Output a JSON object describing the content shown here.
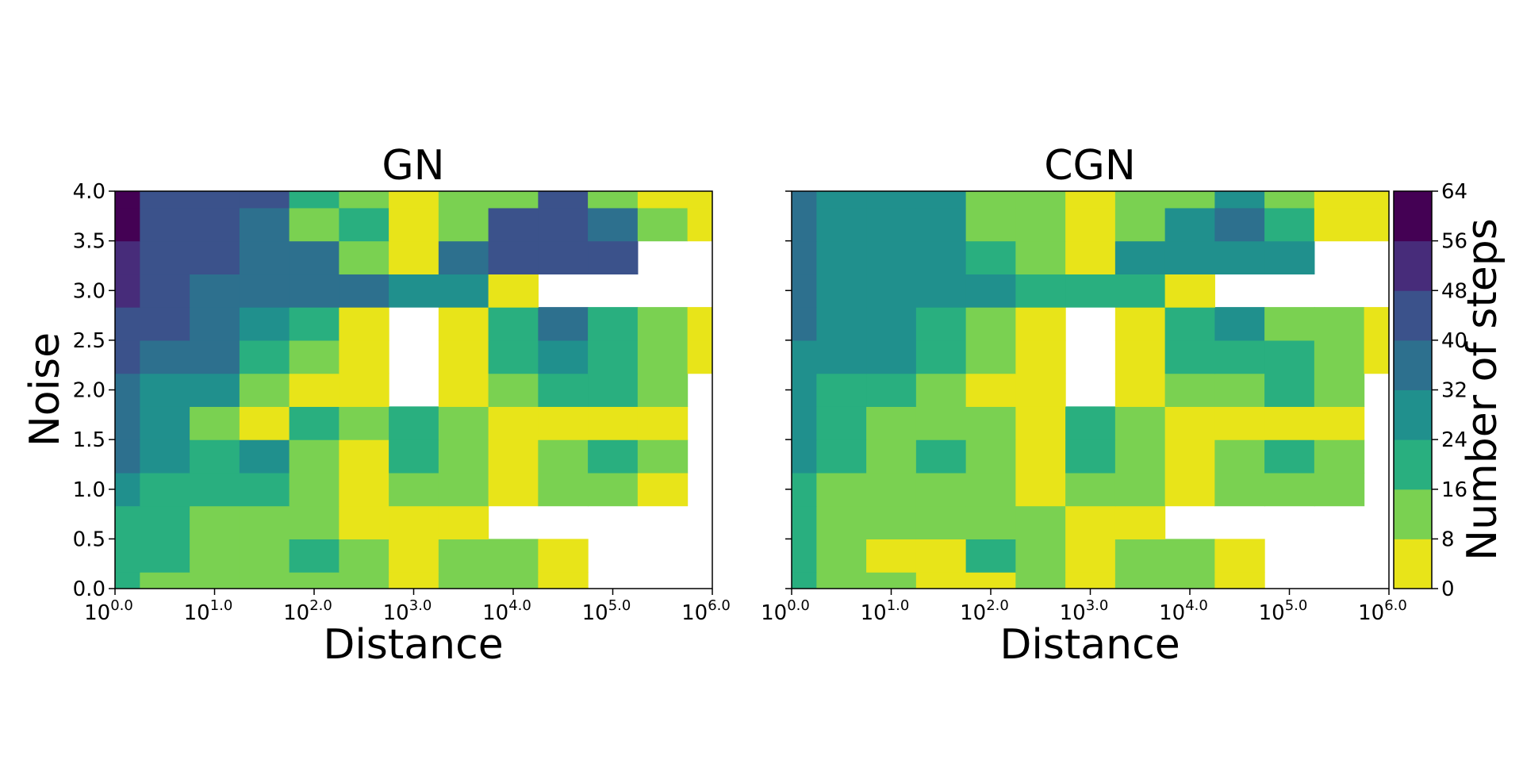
{
  "chart_data": [
    {
      "type": "heatmap",
      "title": "GN",
      "xlabel": "Distance",
      "ylabel": "Noise",
      "x_scale": "log",
      "xlim": [
        1,
        1000000
      ],
      "ylim": [
        0.0,
        4.0
      ],
      "x_tick_base": "10",
      "x_tick_exponents": [
        "0.0",
        "1.0",
        "2.0",
        "3.0",
        "4.0",
        "5.0",
        "6.0"
      ],
      "y_ticks": [
        "0.0",
        "0.5",
        "1.0",
        "1.5",
        "2.0",
        "2.5",
        "3.0",
        "3.5",
        "4.0"
      ],
      "x": [
        1,
        3.16,
        10,
        31.6,
        100,
        316,
        1000,
        3160,
        10000,
        31600,
        100000,
        316000,
        1000000
      ],
      "y": [
        0.0,
        0.333,
        0.667,
        1.0,
        1.333,
        1.667,
        2.0,
        2.333,
        2.667,
        3.0,
        3.333,
        3.667,
        4.0
      ],
      "values": [
        [
          22,
          14,
          10,
          10,
          14,
          14,
          4,
          12,
          10,
          4,
          null,
          null,
          null
        ],
        [
          22,
          16,
          10,
          10,
          16,
          14,
          4,
          10,
          10,
          4,
          null,
          null,
          null
        ],
        [
          22,
          18,
          14,
          12,
          14,
          6,
          4,
          4,
          null,
          null,
          null,
          null,
          null
        ],
        [
          26,
          20,
          20,
          18,
          10,
          4,
          14,
          10,
          4,
          10,
          8,
          4,
          null
        ],
        [
          32,
          24,
          18,
          26,
          14,
          6,
          22,
          14,
          4,
          10,
          22,
          10,
          null
        ],
        [
          34,
          30,
          10,
          6,
          16,
          12,
          20,
          10,
          4,
          4,
          4,
          4,
          null
        ],
        [
          36,
          30,
          26,
          14,
          6,
          4,
          null,
          4,
          10,
          18,
          22,
          10,
          null
        ],
        [
          42,
          38,
          32,
          20,
          10,
          6,
          null,
          6,
          20,
          30,
          22,
          12,
          4
        ],
        [
          44,
          40,
          38,
          30,
          18,
          6,
          null,
          6,
          22,
          34,
          20,
          10,
          4
        ],
        [
          50,
          42,
          38,
          38,
          36,
          32,
          30,
          28,
          4,
          null,
          null,
          null,
          null
        ],
        [
          54,
          42,
          40,
          38,
          34,
          8,
          6,
          38,
          44,
          44,
          40,
          null,
          null
        ],
        [
          58,
          44,
          42,
          38,
          10,
          20,
          4,
          14,
          40,
          46,
          32,
          8,
          4
        ],
        [
          58,
          46,
          46,
          42,
          16,
          10,
          4,
          8,
          10,
          44,
          14,
          6,
          4
        ]
      ]
    },
    {
      "type": "heatmap",
      "title": "CGN",
      "xlabel": "Distance",
      "ylabel": "",
      "x_scale": "log",
      "xlim": [
        1,
        1000000
      ],
      "ylim": [
        0.0,
        4.0
      ],
      "x_tick_base": "10",
      "x_tick_exponents": [
        "0.0",
        "1.0",
        "2.0",
        "3.0",
        "4.0",
        "5.0",
        "6.0"
      ],
      "x": [
        1,
        3.16,
        10,
        31.6,
        100,
        316,
        1000,
        3160,
        10000,
        31600,
        100000,
        316000,
        1000000
      ],
      "y": [
        0.0,
        0.333,
        0.667,
        1.0,
        1.333,
        1.667,
        2.0,
        2.333,
        2.667,
        3.0,
        3.333,
        3.667,
        4.0
      ],
      "values": [
        [
          18,
          10,
          8,
          4,
          6,
          10,
          4,
          10,
          12,
          4,
          null,
          null,
          null
        ],
        [
          16,
          10,
          6,
          6,
          22,
          12,
          4,
          8,
          12,
          4,
          null,
          null,
          null
        ],
        [
          18,
          12,
          10,
          8,
          12,
          8,
          4,
          4,
          null,
          null,
          null,
          null,
          null
        ],
        [
          22,
          14,
          12,
          14,
          8,
          4,
          10,
          8,
          4,
          10,
          14,
          8,
          null
        ],
        [
          24,
          16,
          14,
          20,
          10,
          6,
          16,
          10,
          4,
          10,
          18,
          8,
          null
        ],
        [
          26,
          22,
          14,
          8,
          8,
          4,
          16,
          10,
          6,
          6,
          6,
          4,
          null
        ],
        [
          26,
          22,
          22,
          10,
          6,
          4,
          null,
          4,
          10,
          14,
          22,
          10,
          null
        ],
        [
          30,
          26,
          26,
          18,
          10,
          6,
          null,
          6,
          16,
          22,
          16,
          10,
          4
        ],
        [
          32,
          28,
          28,
          22,
          14,
          6,
          null,
          6,
          18,
          24,
          14,
          10,
          4
        ],
        [
          34,
          28,
          26,
          26,
          24,
          22,
          22,
          22,
          4,
          null,
          null,
          null,
          null
        ],
        [
          36,
          28,
          26,
          26,
          22,
          8,
          6,
          24,
          30,
          30,
          26,
          null,
          null
        ],
        [
          36,
          28,
          28,
          24,
          8,
          14,
          4,
          12,
          28,
          32,
          22,
          6,
          4
        ],
        [
          34,
          30,
          30,
          26,
          14,
          8,
          4,
          8,
          8,
          28,
          10,
          6,
          4
        ]
      ]
    }
  ],
  "colorbar": {
    "label": "Number of steps",
    "levels": [
      0,
      8,
      16,
      24,
      32,
      40,
      48,
      56,
      64
    ],
    "tick_labels": [
      "0",
      "8",
      "16",
      "24",
      "32",
      "40",
      "48",
      "56",
      "64"
    ],
    "colors": [
      "#e8e419",
      "#7ad151",
      "#29af7f",
      "#20908d",
      "#2d708e",
      "#3b528b",
      "#472c7a",
      "#440154"
    ]
  }
}
